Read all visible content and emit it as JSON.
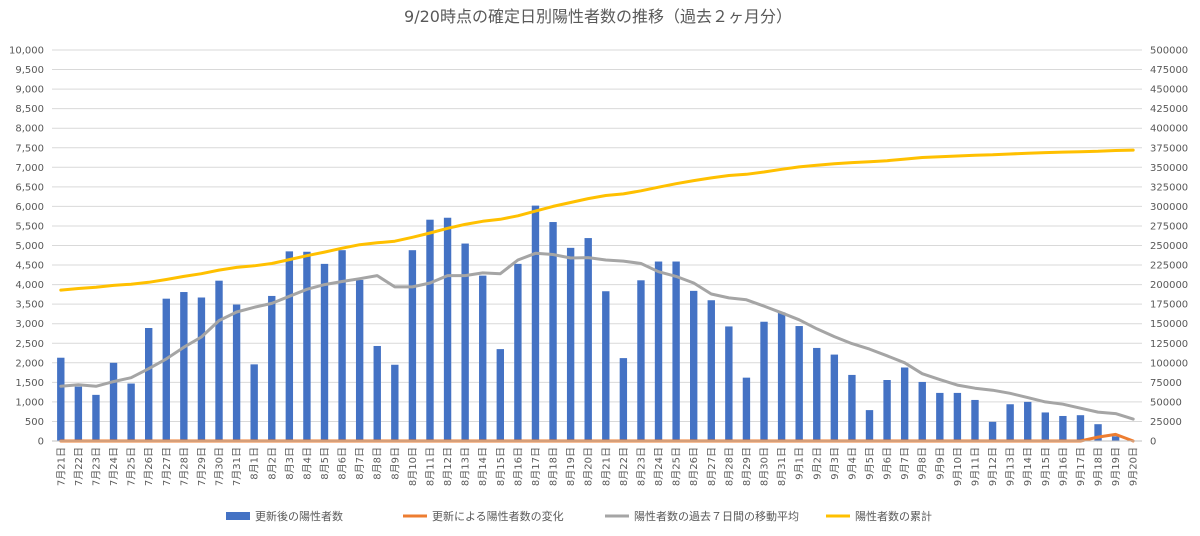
{
  "chart_data": {
    "type": "bar",
    "title": "9/20時点の確定日別陽性者数の推移（過去２ヶ月分）",
    "categories": [
      "7月21日",
      "7月22日",
      "7月23日",
      "7月24日",
      "7月25日",
      "7月26日",
      "7月27日",
      "7月28日",
      "7月29日",
      "7月30日",
      "7月31日",
      "8月1日",
      "8月2日",
      "8月3日",
      "8月4日",
      "8月5日",
      "8月6日",
      "8月7日",
      "8月8日",
      "8月9日",
      "8月10日",
      "8月11日",
      "8月12日",
      "8月13日",
      "8月14日",
      "8月15日",
      "8月16日",
      "8月17日",
      "8月18日",
      "8月19日",
      "8月20日",
      "8月21日",
      "8月22日",
      "8月23日",
      "8月24日",
      "8月25日",
      "8月26日",
      "8月27日",
      "8月28日",
      "8月29日",
      "8月30日",
      "8月31日",
      "9月1日",
      "9月2日",
      "9月3日",
      "9月4日",
      "9月5日",
      "9月6日",
      "9月7日",
      "9月8日",
      "9月9日",
      "9月10日",
      "9月11日",
      "9月12日",
      "9月13日",
      "9月14日",
      "9月15日",
      "9月16日",
      "9月17日",
      "9月18日",
      "9月19日",
      "9月20日"
    ],
    "y_left": {
      "min": 0,
      "max": 10000,
      "step": 500,
      "ticks": [
        "0",
        "500",
        "1,000",
        "1,500",
        "2,000",
        "2,500",
        "3,000",
        "3,500",
        "4,000",
        "4,500",
        "5,000",
        "5,500",
        "6,000",
        "6,500",
        "7,000",
        "7,500",
        "8,000",
        "8,500",
        "9,000",
        "9,500",
        "10,000"
      ]
    },
    "y_right": {
      "min": 0,
      "max": 500000,
      "step": 25000,
      "ticks": [
        "0",
        "25000",
        "50000",
        "75000",
        "100000",
        "125000",
        "150000",
        "175000",
        "200000",
        "225000",
        "250000",
        "275000",
        "300000",
        "325000",
        "350000",
        "375000",
        "400000",
        "425000",
        "450000",
        "475000",
        "500000"
      ]
    },
    "series": [
      {
        "name": "更新後の陽性者数",
        "type": "bar",
        "axis": "left",
        "color": "#4472C4",
        "values": [
          2130,
          1390,
          1180,
          2000,
          1470,
          2890,
          3640,
          3810,
          3670,
          4100,
          3490,
          1960,
          3710,
          4850,
          4840,
          4530,
          4880,
          4120,
          2430,
          1950,
          4880,
          5660,
          5710,
          5050,
          4230,
          2350,
          4530,
          6020,
          5600,
          4940,
          5190,
          3830,
          2120,
          4110,
          4590,
          4590,
          3840,
          3600,
          2930,
          1620,
          3050,
          3290,
          2940,
          2380,
          2210,
          1690,
          790,
          1560,
          1880,
          1510,
          1230,
          1230,
          1050,
          490,
          940,
          1000,
          730,
          640,
          660,
          430,
          120,
          0
        ]
      },
      {
        "name": "更新による陽性者数の変化",
        "type": "line",
        "axis": "left",
        "color": "#ED7D31",
        "values": [
          0,
          0,
          0,
          0,
          0,
          0,
          0,
          0,
          0,
          0,
          0,
          0,
          0,
          0,
          0,
          0,
          0,
          0,
          0,
          0,
          0,
          0,
          0,
          0,
          0,
          0,
          0,
          0,
          0,
          0,
          0,
          0,
          0,
          0,
          0,
          0,
          0,
          0,
          0,
          0,
          0,
          0,
          0,
          0,
          0,
          0,
          0,
          0,
          0,
          0,
          0,
          0,
          0,
          0,
          0,
          0,
          0,
          0,
          0,
          100,
          170,
          0
        ]
      },
      {
        "name": "陽性者数の過去７日間の移動平均",
        "type": "line",
        "axis": "left",
        "color": "#A5A5A5",
        "values": [
          1400,
          1440,
          1400,
          1520,
          1620,
          1850,
          2100,
          2400,
          2660,
          3080,
          3300,
          3420,
          3520,
          3700,
          3880,
          4000,
          4080,
          4150,
          4230,
          3940,
          3940,
          4040,
          4230,
          4230,
          4300,
          4280,
          4630,
          4800,
          4770,
          4680,
          4690,
          4630,
          4600,
          4540,
          4330,
          4210,
          4040,
          3760,
          3660,
          3610,
          3450,
          3280,
          3100,
          2870,
          2670,
          2490,
          2350,
          2180,
          2000,
          1720,
          1570,
          1430,
          1350,
          1300,
          1220,
          1110,
          1000,
          940,
          840,
          740,
          700,
          560
        ]
      },
      {
        "name": "陽性者数の累計",
        "type": "line",
        "axis": "right",
        "color": "#FFC000",
        "values": [
          193000,
          195000,
          196500,
          199000,
          200500,
          203000,
          206500,
          210500,
          214000,
          218500,
          222000,
          224000,
          227000,
          232000,
          237000,
          241500,
          246500,
          251000,
          253500,
          255500,
          260500,
          266000,
          272000,
          277000,
          281000,
          283500,
          288000,
          294000,
          300000,
          305000,
          310000,
          314000,
          316000,
          320000,
          324500,
          329000,
          333000,
          336500,
          339500,
          341000,
          344000,
          347500,
          350500,
          352500,
          354500,
          356000,
          357000,
          358500,
          360500,
          362500,
          363500,
          364500,
          365500,
          366000,
          367000,
          368000,
          368800,
          369500,
          370000,
          370500,
          371500,
          372000
        ]
      }
    ],
    "legend_position": "bottom",
    "grid": true
  }
}
